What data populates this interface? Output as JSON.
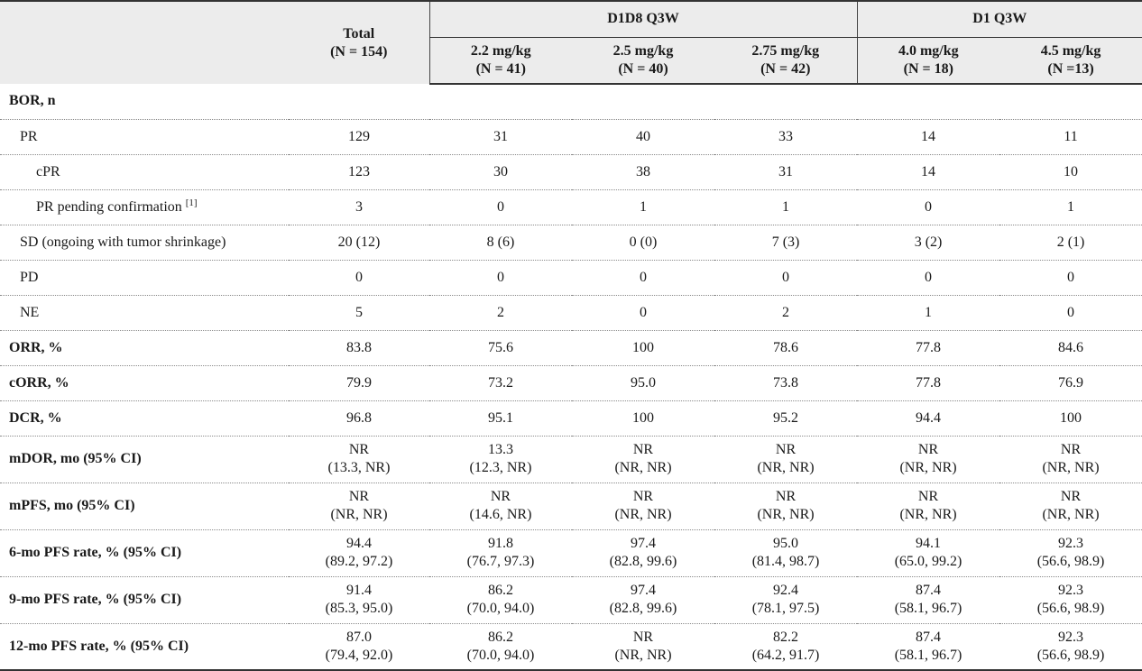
{
  "header": {
    "total": {
      "title": "Total",
      "n": "(N = 154)"
    },
    "groups": [
      {
        "label": "D1D8 Q3W",
        "span": 3
      },
      {
        "label": "D1 Q3W",
        "span": 2
      }
    ],
    "doses": [
      {
        "dose": "2.2 mg/kg",
        "n": "(N = 41)"
      },
      {
        "dose": "2.5 mg/kg",
        "n": "(N = 40)"
      },
      {
        "dose": "2.75 mg/kg",
        "n": "(N = 42)"
      },
      {
        "dose": "4.0 mg/kg",
        "n": "(N = 18)"
      },
      {
        "dose": "4.5 mg/kg",
        "n": "(N =13)"
      }
    ]
  },
  "rows": [
    {
      "label": "BOR, n",
      "bold": true,
      "indent": 0,
      "cells": []
    },
    {
      "label": "PR",
      "indent": 1,
      "cells": [
        [
          "129"
        ],
        [
          "31"
        ],
        [
          "40"
        ],
        [
          "33"
        ],
        [
          "14"
        ],
        [
          "11"
        ]
      ]
    },
    {
      "label": "cPR",
      "indent": 2,
      "cells": [
        [
          "123"
        ],
        [
          "30"
        ],
        [
          "38"
        ],
        [
          "31"
        ],
        [
          "14"
        ],
        [
          "10"
        ]
      ]
    },
    {
      "label": "PR pending confirmation",
      "sup": "[1]",
      "indent": 2,
      "cells": [
        [
          "3"
        ],
        [
          "0"
        ],
        [
          "1"
        ],
        [
          "1"
        ],
        [
          "0"
        ],
        [
          "1"
        ]
      ]
    },
    {
      "label": "SD (ongoing with tumor shrinkage)",
      "indent": 1,
      "cells": [
        [
          "20 (12)"
        ],
        [
          "8 (6)"
        ],
        [
          "0 (0)"
        ],
        [
          "7 (3)"
        ],
        [
          "3 (2)"
        ],
        [
          "2 (1)"
        ]
      ]
    },
    {
      "label": "PD",
      "indent": 1,
      "cells": [
        [
          "0"
        ],
        [
          "0"
        ],
        [
          "0"
        ],
        [
          "0"
        ],
        [
          "0"
        ],
        [
          "0"
        ]
      ]
    },
    {
      "label": "NE",
      "indent": 1,
      "cells": [
        [
          "5"
        ],
        [
          "2"
        ],
        [
          "0"
        ],
        [
          "2"
        ],
        [
          "1"
        ],
        [
          "0"
        ]
      ]
    },
    {
      "label": "ORR, %",
      "bold": true,
      "indent": 0,
      "cells": [
        [
          "83.8"
        ],
        [
          "75.6"
        ],
        [
          "100"
        ],
        [
          "78.6"
        ],
        [
          "77.8"
        ],
        [
          "84.6"
        ]
      ]
    },
    {
      "label": "cORR, %",
      "bold": true,
      "indent": 0,
      "cells": [
        [
          "79.9"
        ],
        [
          "73.2"
        ],
        [
          "95.0"
        ],
        [
          "73.8"
        ],
        [
          "77.8"
        ],
        [
          "76.9"
        ]
      ]
    },
    {
      "label": "DCR, %",
      "bold": true,
      "indent": 0,
      "cells": [
        [
          "96.8"
        ],
        [
          "95.1"
        ],
        [
          "100"
        ],
        [
          "95.2"
        ],
        [
          "94.4"
        ],
        [
          "100"
        ]
      ]
    },
    {
      "label": "mDOR, mo (95% CI)",
      "bold": true,
      "indent": 0,
      "cells": [
        [
          "NR",
          "(13.3, NR)"
        ],
        [
          "13.3",
          "(12.3, NR)"
        ],
        [
          "NR",
          "(NR, NR)"
        ],
        [
          "NR",
          "(NR, NR)"
        ],
        [
          "NR",
          "(NR, NR)"
        ],
        [
          "NR",
          "(NR, NR)"
        ]
      ]
    },
    {
      "label": "mPFS, mo (95% CI)",
      "bold": true,
      "indent": 0,
      "cells": [
        [
          "NR",
          "(NR, NR)"
        ],
        [
          "NR",
          "(14.6, NR)"
        ],
        [
          "NR",
          "(NR, NR)"
        ],
        [
          "NR",
          "(NR, NR)"
        ],
        [
          "NR",
          "(NR, NR)"
        ],
        [
          "NR",
          "(NR, NR)"
        ]
      ]
    },
    {
      "label": "6-mo PFS rate, % (95% CI)",
      "bold": true,
      "indent": 0,
      "cells": [
        [
          "94.4",
          "(89.2, 97.2)"
        ],
        [
          "91.8",
          "(76.7, 97.3)"
        ],
        [
          "97.4",
          "(82.8, 99.6)"
        ],
        [
          "95.0",
          "(81.4, 98.7)"
        ],
        [
          "94.1",
          "(65.0, 99.2)"
        ],
        [
          "92.3",
          "(56.6, 98.9)"
        ]
      ]
    },
    {
      "label": "9-mo PFS rate, % (95% CI)",
      "bold": true,
      "indent": 0,
      "cells": [
        [
          "91.4",
          "(85.3, 95.0)"
        ],
        [
          "86.2",
          "(70.0, 94.0)"
        ],
        [
          "97.4",
          "(82.8, 99.6)"
        ],
        [
          "92.4",
          "(78.1, 97.5)"
        ],
        [
          "87.4",
          "(58.1, 96.7)"
        ],
        [
          "92.3",
          "(56.6, 98.9)"
        ]
      ]
    },
    {
      "label": "12-mo PFS rate, % (95% CI)",
      "bold": true,
      "indent": 0,
      "cells": [
        [
          "87.0",
          "(79.4, 92.0)"
        ],
        [
          "86.2",
          "(70.0, 94.0)"
        ],
        [
          "NR",
          "(NR, NR)"
        ],
        [
          "82.2",
          "(64.2, 91.7)"
        ],
        [
          "87.4",
          "(58.1, 96.7)"
        ],
        [
          "92.3",
          "(56.6, 98.9)"
        ]
      ]
    }
  ]
}
